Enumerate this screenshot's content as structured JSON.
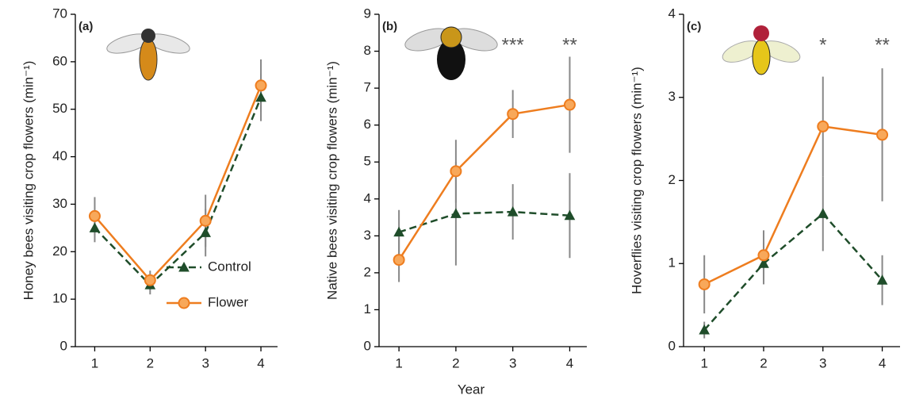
{
  "chart_data": [
    {
      "type": "line",
      "label": "(a)",
      "y_label": "Honey bees visiting crop flowers (min⁻¹)",
      "x": [
        1,
        2,
        3,
        4
      ],
      "xlim": [
        0.65,
        4.3
      ],
      "xticks": [
        1,
        2,
        3,
        4
      ],
      "ylim": [
        0,
        70
      ],
      "yticks": [
        0,
        10,
        20,
        30,
        40,
        50,
        60,
        70
      ],
      "legend": "lower right",
      "series": [
        {
          "name": "Control",
          "color": "#1f4d2a",
          "linestyle": "dashed",
          "marker": "triangle",
          "values": [
            25,
            13,
            24,
            52.5
          ],
          "errors": [
            3,
            2,
            5,
            5
          ]
        },
        {
          "name": "Flower",
          "color": "#ee7d1f",
          "linestyle": "solid",
          "marker": "circle",
          "values": [
            27.5,
            14,
            26.5,
            55
          ],
          "errors": [
            4,
            2,
            5.5,
            5.5
          ]
        }
      ]
    },
    {
      "type": "line",
      "label": "(b)",
      "y_label": "Native bees visiting crop flowers (min⁻¹)",
      "x_label": "Year",
      "x": [
        1,
        2,
        3,
        4
      ],
      "xlim": [
        0.65,
        4.3
      ],
      "xticks": [
        1,
        2,
        3,
        4
      ],
      "ylim": [
        0,
        9
      ],
      "yticks": [
        0,
        1,
        2,
        3,
        4,
        5,
        6,
        7,
        8,
        9
      ],
      "annotations": [
        {
          "x": 3,
          "text": "***"
        },
        {
          "x": 4,
          "text": "**"
        }
      ],
      "series": [
        {
          "color": "#1f4d2a",
          "linestyle": "dashed",
          "marker": "triangle",
          "values": [
            3.1,
            3.6,
            3.65,
            3.55
          ],
          "errors": [
            0.6,
            1.4,
            0.75,
            1.15
          ]
        },
        {
          "color": "#ee7d1f",
          "linestyle": "solid",
          "marker": "circle",
          "values": [
            2.35,
            4.75,
            6.3,
            6.55
          ],
          "errors": [
            0.6,
            0.85,
            0.65,
            1.3
          ]
        }
      ]
    },
    {
      "type": "line",
      "label": "(c)",
      "y_label": "Hoverflies visiting crop flowers (min⁻¹)",
      "x": [
        1,
        2,
        3,
        4
      ],
      "xlim": [
        0.65,
        4.3
      ],
      "xticks": [
        1,
        2,
        3,
        4
      ],
      "ylim": [
        0,
        4
      ],
      "yticks": [
        0,
        1,
        2,
        3,
        4
      ],
      "annotations": [
        {
          "x": 3,
          "text": "*"
        },
        {
          "x": 4,
          "text": "**"
        }
      ],
      "series": [
        {
          "color": "#1f4d2a",
          "linestyle": "dashed",
          "marker": "triangle",
          "values": [
            0.2,
            1.0,
            1.6,
            0.8
          ],
          "errors": [
            0.1,
            0.25,
            0.45,
            0.3
          ]
        },
        {
          "color": "#ee7d1f",
          "linestyle": "solid",
          "marker": "circle",
          "values": [
            0.75,
            1.1,
            2.65,
            2.55
          ],
          "errors": [
            0.35,
            0.3,
            0.6,
            0.8
          ]
        }
      ]
    }
  ]
}
